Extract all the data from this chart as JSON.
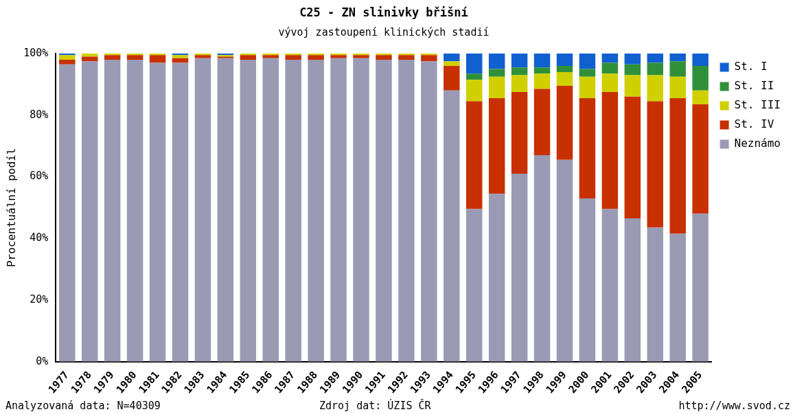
{
  "chart_data": {
    "type": "bar",
    "stacked": true,
    "title": "C25 - ZN slinivky břišní",
    "subtitle": "vývoj zastoupení klinických stadií",
    "ylabel": "Procentuální podíl",
    "categories": [
      "1977",
      "1978",
      "1979",
      "1980",
      "1981",
      "1982",
      "1983",
      "1984",
      "1985",
      "1986",
      "1987",
      "1988",
      "1989",
      "1990",
      "1991",
      "1992",
      "1993",
      "1994",
      "1995",
      "1996",
      "1997",
      "1998",
      "1999",
      "2000",
      "2001",
      "2002",
      "2003",
      "2004",
      "2005"
    ],
    "series": [
      {
        "name": "Neznámo",
        "color": "#9a9ab4",
        "values": [
          96.5,
          97.5,
          98,
          98,
          97,
          97,
          98.5,
          98.5,
          98,
          98.5,
          98,
          98,
          98.5,
          98.5,
          98,
          98,
          97.5,
          88,
          49.5,
          54.5,
          61,
          67,
          65.5,
          53,
          49.5,
          46.5,
          43.5,
          41.5,
          48
        ]
      },
      {
        "name": "St. IV",
        "color": "#c83000",
        "values": [
          1.5,
          1.5,
          1.5,
          1.5,
          2.5,
          1.5,
          1,
          0.5,
          1.5,
          1,
          1.5,
          1.5,
          1,
          1,
          1.5,
          1.5,
          2,
          8,
          35,
          31,
          26.5,
          21.5,
          24,
          32.5,
          38,
          39.5,
          41,
          44,
          35.5
        ]
      },
      {
        "name": "St. III",
        "color": "#d0d000",
        "values": [
          1.5,
          1,
          0.5,
          0.5,
          0.5,
          1,
          0.5,
          0.5,
          0.5,
          0.5,
          0.5,
          0.5,
          0.5,
          0.5,
          0.5,
          0.5,
          0.5,
          1.5,
          7,
          7,
          5.5,
          5,
          4.5,
          7,
          6,
          7,
          8.5,
          7,
          4.5
        ]
      },
      {
        "name": "St. II",
        "color": "#30903a",
        "values": [
          0,
          0,
          0,
          0,
          0,
          0,
          0,
          0,
          0,
          0,
          0,
          0,
          0,
          0,
          0,
          0,
          0,
          0,
          2,
          2.5,
          2.5,
          2,
          2,
          2.5,
          3.5,
          3.5,
          4,
          5,
          8
        ]
      },
      {
        "name": "St. I",
        "color": "#1060d0",
        "values": [
          0.5,
          0,
          0,
          0,
          0,
          0.5,
          0,
          0.5,
          0,
          0,
          0,
          0,
          0,
          0,
          0,
          0,
          0,
          2.5,
          6.5,
          5,
          4.5,
          4.5,
          4,
          5,
          3,
          3.5,
          3,
          2.5,
          4
        ]
      }
    ],
    "ylim": [
      0,
      100
    ],
    "yticks": [
      {
        "value": 0,
        "label": "0%"
      },
      {
        "value": 20,
        "label": "20%"
      },
      {
        "value": 40,
        "label": "40%"
      },
      {
        "value": 60,
        "label": "60%"
      },
      {
        "value": 80,
        "label": "80%"
      },
      {
        "value": 100,
        "label": "100%"
      }
    ],
    "grid": false,
    "legend": "right",
    "annotations": [
      "Analyzovaná data: N=40309",
      "Zdroj dat: ÚZIS ČR",
      "http://www.svod.cz"
    ]
  }
}
